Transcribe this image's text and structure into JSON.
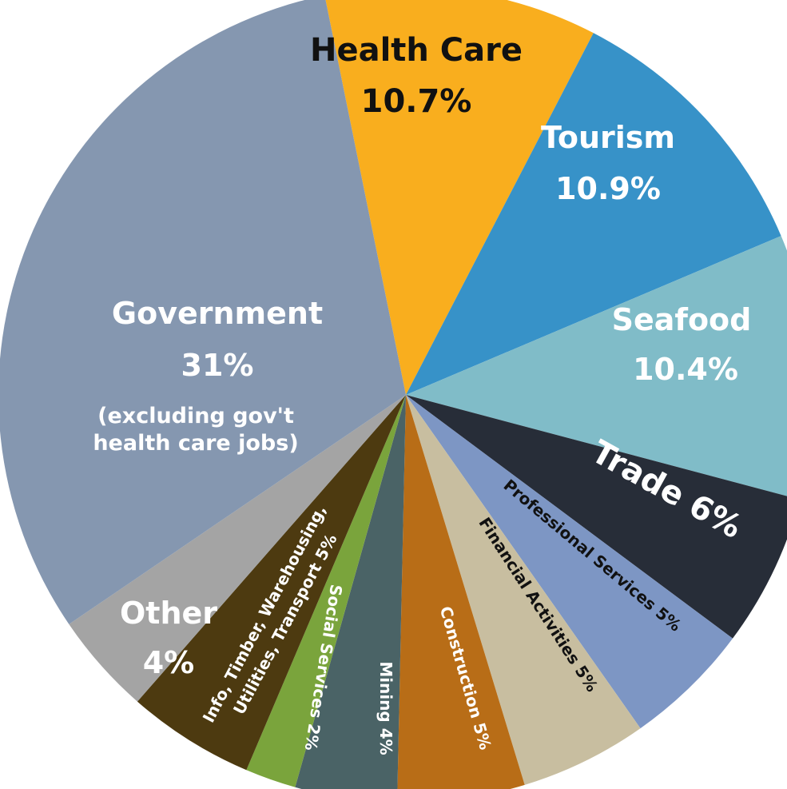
{
  "chart_data": {
    "type": "pie",
    "slices": [
      {
        "label": "Health Care",
        "value_label": "10.7%",
        "value": 10.7,
        "color": "#f9ae1e"
      },
      {
        "label": "Tourism",
        "value_label": "10.9%",
        "value": 10.9,
        "color": "#3792c8"
      },
      {
        "label": "Seafood",
        "value_label": "10.4%",
        "value": 10.4,
        "color": "#80bcc8"
      },
      {
        "label": "Trade 6%",
        "value": 6,
        "color": "#272d38"
      },
      {
        "label": "Professional Services 5%",
        "value": 5,
        "color": "#7d96c4"
      },
      {
        "label": "Financial Activities 5%",
        "value": 5,
        "color": "#c8bea0"
      },
      {
        "label": "Construction 5%",
        "value": 5,
        "color": "#b86d17"
      },
      {
        "label": "Mining 4%",
        "value": 4,
        "color": "#4a6366"
      },
      {
        "label": "Social Services 2%",
        "value": 2,
        "color": "#7aa43c"
      },
      {
        "label": "Info, Timber, Warehousing,",
        "label2": "Utilities, Transport 5%",
        "value": 5,
        "color": "#4d3a10"
      },
      {
        "label": "Other",
        "value_label": "4%",
        "value": 4,
        "color": "#a4a4a4"
      },
      {
        "label": "Government",
        "value_label": "31%",
        "note": "(excluding gov't",
        "note2": "health care jobs)",
        "value": 31,
        "color": "#8597b0"
      }
    ]
  }
}
